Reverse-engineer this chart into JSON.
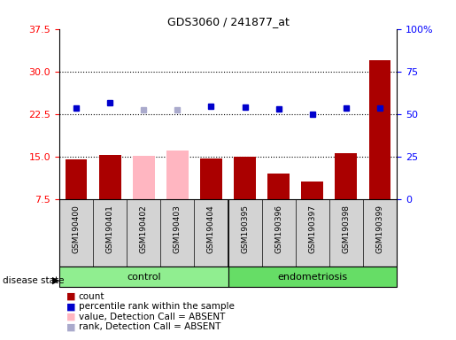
{
  "title": "GDS3060 / 241877_at",
  "samples": [
    "GSM190400",
    "GSM190401",
    "GSM190402",
    "GSM190403",
    "GSM190404",
    "GSM190395",
    "GSM190396",
    "GSM190397",
    "GSM190398",
    "GSM190399"
  ],
  "groups": [
    "control",
    "control",
    "control",
    "control",
    "control",
    "endometriosis",
    "endometriosis",
    "endometriosis",
    "endometriosis",
    "endometriosis"
  ],
  "bar_values": [
    14.5,
    15.3,
    15.1,
    16.0,
    14.6,
    15.0,
    12.0,
    10.5,
    15.5,
    32.0
  ],
  "bar_absent": [
    false,
    false,
    true,
    true,
    false,
    false,
    false,
    false,
    false,
    false
  ],
  "dot_values": [
    23.5,
    24.5,
    23.2,
    23.3,
    23.8,
    23.7,
    23.4,
    22.5,
    23.6,
    23.6
  ],
  "dot_absent": [
    false,
    false,
    true,
    true,
    false,
    false,
    false,
    false,
    false,
    false
  ],
  "left_ylim": [
    7.5,
    37.5
  ],
  "right_ylim": [
    0,
    100
  ],
  "left_yticks": [
    7.5,
    15.0,
    22.5,
    30.0,
    37.5
  ],
  "right_yticks": [
    0,
    25,
    50,
    75,
    100
  ],
  "right_yticklabels": [
    "0",
    "25",
    "50",
    "75",
    "100%"
  ],
  "hline_values": [
    15.0,
    22.5,
    30.0
  ],
  "bar_color_normal": "#AA0000",
  "bar_color_absent": "#FFB6C1",
  "dot_color_normal": "#0000CC",
  "dot_color_absent": "#AAAACC",
  "control_color": "#90EE90",
  "endometriosis_color": "#66DD66",
  "legend_items": [
    {
      "color": "#AA0000",
      "label": "count"
    },
    {
      "color": "#0000CC",
      "label": "percentile rank within the sample"
    },
    {
      "color": "#FFB6C1",
      "label": "value, Detection Call = ABSENT"
    },
    {
      "color": "#AAAACC",
      "label": "rank, Detection Call = ABSENT"
    }
  ]
}
